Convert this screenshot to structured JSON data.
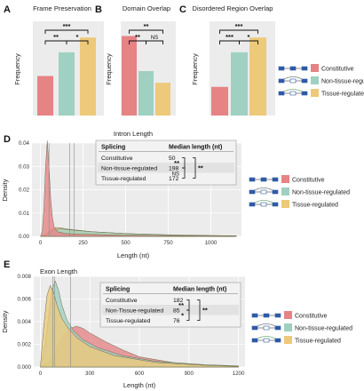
{
  "colors": {
    "constitutive": "#e58385",
    "non_tissue": "#9fd0c2",
    "tissue": "#edc97a"
  },
  "legend": [
    "Constitutive",
    "Non-tissue-regulated",
    "Tissue-regulated"
  ],
  "chart_data": [
    {
      "panel": "A",
      "type": "bar",
      "title": "Frame Preservation",
      "ylabel": "Frequency",
      "categories": [
        "Constitutive",
        "Non-tissue-regulated",
        "Tissue-regulated"
      ],
      "values": [
        0.4,
        0.64,
        0.79
      ],
      "ylim": [
        0,
        0.9
      ],
      "significance": [
        {
          "pair": [
            0,
            1
          ],
          "label": "**"
        },
        {
          "pair": [
            1,
            2
          ],
          "label": "*"
        },
        {
          "pair": [
            0,
            2
          ],
          "label": "***"
        }
      ]
    },
    {
      "panel": "B",
      "type": "bar",
      "title": "Domain Overlap",
      "ylabel": "Frequency",
      "categories": [
        "Constitutive",
        "Non-tissue-regulated",
        "Tissue-regulated"
      ],
      "values": [
        0.34,
        0.19,
        0.14
      ],
      "ylim": [
        0,
        0.38
      ],
      "significance": [
        {
          "pair": [
            0,
            1
          ],
          "label": "**"
        },
        {
          "pair": [
            1,
            2
          ],
          "label": "NS"
        },
        {
          "pair": [
            0,
            2
          ],
          "label": "**"
        }
      ]
    },
    {
      "panel": "C",
      "type": "bar",
      "title": "Disordered Region Overlap",
      "ylabel": "Frequency",
      "categories": [
        "Constitutive",
        "Non-tissue-regulated",
        "Tissue-regulated"
      ],
      "values": [
        0.29,
        0.64,
        0.79
      ],
      "ylim": [
        0,
        0.9
      ],
      "significance": [
        {
          "pair": [
            0,
            1
          ],
          "label": "***"
        },
        {
          "pair": [
            1,
            2
          ],
          "label": "*"
        },
        {
          "pair": [
            0,
            2
          ],
          "label": "***"
        }
      ]
    },
    {
      "panel": "D",
      "type": "area",
      "title": "Intron Length",
      "xlabel": "Length (nt)",
      "ylabel": "Density",
      "xlim": [
        -50,
        1180
      ],
      "ylim": [
        0,
        0.04
      ],
      "xticks": [
        0,
        250,
        500,
        750,
        1000
      ],
      "yticks": [
        0.0,
        0.01,
        0.02,
        0.03,
        0.04
      ],
      "ytick_labels": [
        "0.00",
        "0.01",
        "0.02",
        "0.03",
        "0.04"
      ],
      "medians": [
        50,
        198,
        172
      ],
      "series": [
        {
          "name": "Constitutive",
          "x": [
            0,
            10,
            20,
            30,
            40,
            50,
            60,
            70,
            80,
            100,
            150,
            250,
            500,
            1000,
            1150
          ],
          "y": [
            0,
            0.002,
            0.012,
            0.03,
            0.041,
            0.03,
            0.016,
            0.008,
            0.004,
            0.002,
            0.0012,
            0.0009,
            0.0005,
            0.0002,
            0.0001
          ]
        },
        {
          "name": "Non-tissue-regulated",
          "x": [
            0,
            30,
            60,
            90,
            120,
            150,
            200,
            300,
            500,
            800,
            1150
          ],
          "y": [
            0,
            0.0005,
            0.002,
            0.003,
            0.0032,
            0.003,
            0.0026,
            0.002,
            0.0012,
            0.0006,
            0.0002
          ]
        },
        {
          "name": "Tissue-regulated",
          "x": [
            0,
            30,
            60,
            90,
            120,
            150,
            200,
            300,
            500,
            800,
            1150
          ],
          "y": [
            0,
            0.0008,
            0.0028,
            0.0038,
            0.0036,
            0.0032,
            0.0028,
            0.002,
            0.0012,
            0.0005,
            0.0002
          ]
        }
      ],
      "table": {
        "headers": [
          "Splicing",
          "Median length (nt)"
        ],
        "rows": [
          [
            "Constitutive",
            "50"
          ],
          [
            "Non-tissue-regulated",
            "198"
          ],
          [
            "Tissue-regulated",
            "172"
          ]
        ],
        "significance": [
          {
            "rows": [
              0,
              1
            ],
            "label": "**"
          },
          {
            "rows": [
              1,
              2
            ],
            "label": "NS"
          },
          {
            "rows": [
              0,
              2
            ],
            "label": "**"
          }
        ]
      }
    },
    {
      "panel": "E",
      "type": "area",
      "title": "Exon Length",
      "xlabel": "Length (nt)",
      "ylabel": "Density",
      "xlim": [
        -40,
        1240
      ],
      "ylim": [
        0,
        0.008
      ],
      "xticks": [
        0,
        300,
        600,
        900,
        1200
      ],
      "yticks": [
        0.0,
        0.002,
        0.004,
        0.006,
        0.008
      ],
      "ytick_labels": [
        "0.000",
        "0.002",
        "0.004",
        "0.006",
        "0.008"
      ],
      "medians": [
        182,
        85,
        76
      ],
      "series": [
        {
          "name": "Constitutive",
          "x": [
            0,
            60,
            100,
            140,
            180,
            220,
            260,
            300,
            400,
            500,
            600,
            800,
            1000,
            1200
          ],
          "y": [
            0,
            0.0006,
            0.0016,
            0.0028,
            0.0034,
            0.0036,
            0.0034,
            0.003,
            0.0022,
            0.0015,
            0.0009,
            0.0004,
            0.00015,
            5e-05
          ]
        },
        {
          "name": "Non-tissue-regulated",
          "x": [
            0,
            30,
            50,
            70,
            90,
            110,
            130,
            160,
            200,
            260,
            350,
            500,
            700,
            1000,
            1200
          ],
          "y": [
            0,
            0.002,
            0.0045,
            0.0068,
            0.0076,
            0.0068,
            0.0055,
            0.0042,
            0.0032,
            0.0024,
            0.0017,
            0.001,
            0.0005,
            0.0002,
            0.0001
          ]
        },
        {
          "name": "Tissue-regulated",
          "x": [
            0,
            20,
            40,
            60,
            80,
            100,
            130,
            170,
            220,
            300,
            450,
            700,
            1000,
            1200
          ],
          "y": [
            0,
            0.0035,
            0.0063,
            0.0072,
            0.0066,
            0.0055,
            0.0043,
            0.0034,
            0.0026,
            0.0018,
            0.001,
            0.0004,
            0.00015,
            5e-05
          ]
        }
      ],
      "table": {
        "headers": [
          "Splicing",
          "Median length (nt)"
        ],
        "rows": [
          [
            "Constitutive",
            "182"
          ],
          [
            "Non-Tissue-regulated",
            "85"
          ],
          [
            "Tissue-regulated",
            "76"
          ]
        ],
        "significance": [
          {
            "rows": [
              0,
              1
            ],
            "label": "**"
          },
          {
            "rows": [
              1,
              2
            ],
            "label": "*"
          },
          {
            "rows": [
              0,
              2
            ],
            "label": "**"
          }
        ]
      }
    }
  ]
}
